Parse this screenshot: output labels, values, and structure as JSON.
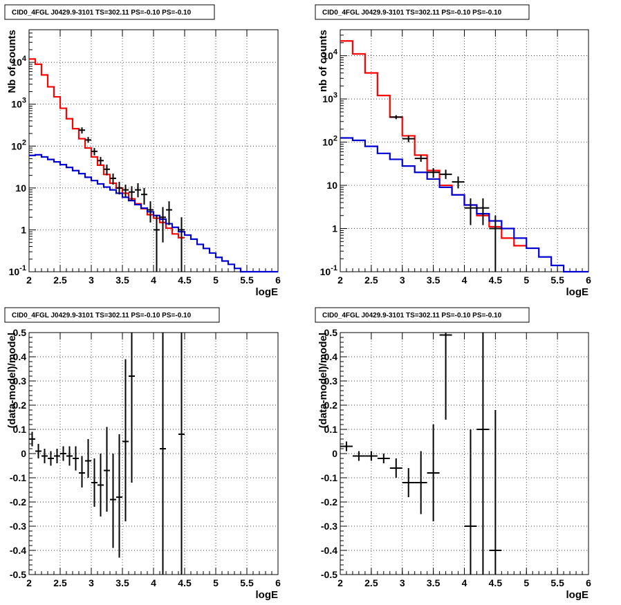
{
  "panel_titles": [
    "CID0_4FGL J0429.9-3101 TS=302.11 PS=-0.10 PS=-0.10",
    "CID0_4FGL J0429.9-3101 TS=302.11 PS=-0.10 PS=-0.10",
    "CID0_4FGL J0429.9-3101 TS=302.11 PS=-0.10 PS=-0.10",
    "CID0_4FGL J0429.9-3101 TS=302.11 PS=-0.10 PS=-0.10"
  ],
  "colors": {
    "total_model": "#ff0000",
    "background_model": "#0000d0",
    "data": "#000000",
    "grid": "#000000"
  },
  "chart_data": [
    {
      "type": "line",
      "title": "CID0_4FGL J0429.9-3101 TS=302.11 PS=-0.10 PS=-0.10",
      "xlabel": "logE",
      "ylabel": "Nb of counts",
      "log_y": true,
      "grid": true,
      "xlim": [
        2,
        6
      ],
      "ylim": [
        0.1,
        60000
      ],
      "xticks": [
        "2",
        "2.5",
        "3",
        "3.5",
        "4",
        "4.5",
        "5",
        "5.5",
        "6"
      ],
      "yticks": [
        {
          "v": 0.1,
          "label": "10^-1"
        },
        {
          "v": 1,
          "label": "1"
        },
        {
          "v": 10,
          "label": "10"
        },
        {
          "v": 100,
          "label": "10^2"
        },
        {
          "v": 1000,
          "label": "10^3"
        },
        {
          "v": 10000,
          "label": "10^4"
        }
      ],
      "series": [
        {
          "kind": "step",
          "edges": [
            2.0,
            2.1,
            2.2,
            2.3,
            2.4,
            2.5,
            2.6,
            2.7,
            2.8,
            2.9,
            3.0,
            3.1,
            3.2,
            3.3,
            3.4,
            3.5,
            3.6,
            3.7,
            3.8,
            3.9,
            4.0,
            4.1,
            4.2,
            4.3,
            4.4,
            4.5
          ],
          "values": [
            12000,
            9000,
            5000,
            2600,
            1500,
            800,
            450,
            260,
            150,
            90,
            55,
            35,
            21,
            13,
            10,
            7.5,
            5.5,
            4.2,
            3.2,
            2.3,
            1.9,
            1.5,
            1.1,
            0.8,
            0.65
          ]
        },
        {
          "kind": "step",
          "edges": [
            2.0,
            2.1,
            2.2,
            2.3,
            2.4,
            2.5,
            2.6,
            2.7,
            2.8,
            2.9,
            3.0,
            3.1,
            3.2,
            3.3,
            3.4,
            3.5,
            3.6,
            3.7,
            3.8,
            3.9,
            4.0,
            4.1,
            4.2,
            4.3,
            4.4,
            4.5,
            4.6,
            4.7,
            4.8,
            4.9,
            5.0,
            5.1,
            5.2,
            5.3,
            5.4,
            5.5,
            5.6,
            5.7,
            5.8,
            5.9,
            6.0
          ],
          "values": [
            60,
            62,
            55,
            48,
            42,
            36,
            31,
            26,
            22,
            18,
            15,
            12.5,
            10.5,
            9,
            7.5,
            6,
            5,
            4,
            3.3,
            2.7,
            2.2,
            1.8,
            1.4,
            1.15,
            0.9,
            0.75,
            0.6,
            0.45,
            0.36,
            0.28,
            0.22,
            0.18,
            0.15,
            0.12,
            0.1,
            0.1,
            0.1,
            0.1,
            0.1,
            0.1
          ]
        },
        {
          "kind": "points",
          "x": [
            2.85,
            2.95,
            3.05,
            3.15,
            3.25,
            3.35,
            3.45,
            3.55,
            3.65,
            3.75,
            3.85,
            3.95,
            4.05,
            4.15,
            4.25,
            4.45
          ],
          "y": [
            240,
            140,
            75,
            45,
            28,
            17,
            10,
            9,
            8,
            9,
            7,
            3,
            1,
            2,
            3,
            1
          ],
          "ylo": [
            200,
            120,
            60,
            35,
            20,
            12,
            7,
            6,
            5,
            6,
            4,
            1.5,
            0.1,
            0.5,
            1.3,
            0.1
          ],
          "yhi": [
            280,
            165,
            90,
            55,
            36,
            22,
            14,
            12,
            11,
            13,
            10,
            4.8,
            2.3,
            3.5,
            4.8,
            2.0
          ],
          "xerr": 0.05
        }
      ]
    },
    {
      "type": "line",
      "title": "CID0_4FGL J0429.9-3101 TS=302.11 PS=-0.10 PS=-0.10",
      "xlabel": "logE",
      "ylabel": "nb of counts",
      "log_y": true,
      "grid": true,
      "xlim": [
        2,
        6
      ],
      "ylim": [
        0.1,
        40000
      ],
      "xticks": [
        "2",
        "2.5",
        "3",
        "3.5",
        "4",
        "4.5",
        "5",
        "5.5",
        "6"
      ],
      "yticks": [
        {
          "v": 0.1,
          "label": "10^-1"
        },
        {
          "v": 1,
          "label": "1"
        },
        {
          "v": 10,
          "label": "10"
        },
        {
          "v": 100,
          "label": "10^2"
        },
        {
          "v": 1000,
          "label": "10^3"
        },
        {
          "v": 10000,
          "label": "10^4"
        }
      ],
      "series": [
        {
          "kind": "step",
          "edges": [
            2.0,
            2.2,
            2.4,
            2.6,
            2.8,
            3.0,
            3.2,
            3.4,
            3.6,
            3.8,
            4.0,
            4.2,
            4.4,
            4.6,
            4.8,
            5.0
          ],
          "values": [
            22000,
            11000,
            4000,
            1200,
            380,
            140,
            50,
            22,
            10,
            6,
            3.5,
            2.0,
            1.1,
            0.6,
            0.4
          ]
        },
        {
          "kind": "step",
          "edges": [
            2.0,
            2.2,
            2.4,
            2.6,
            2.8,
            3.0,
            3.2,
            3.4,
            3.6,
            3.8,
            4.0,
            4.2,
            4.4,
            4.6,
            4.8,
            5.0,
            5.2,
            5.4,
            5.6,
            5.8,
            6.0
          ],
          "values": [
            125,
            110,
            80,
            55,
            40,
            28,
            20,
            14,
            9,
            6,
            3.5,
            2.2,
            1.5,
            1.0,
            0.6,
            0.35,
            0.22,
            0.14,
            0.1,
            0.1
          ]
        },
        {
          "kind": "points",
          "x": [
            2.9,
            3.1,
            3.3,
            3.5,
            3.7,
            3.9,
            4.1,
            4.3,
            4.5
          ],
          "y": [
            380,
            120,
            42,
            20,
            18,
            12,
            3,
            3,
            1
          ],
          "ylo": [
            340,
            100,
            35,
            15,
            14,
            8.5,
            1.2,
            1.2,
            0.1
          ],
          "yhi": [
            420,
            140,
            50,
            25,
            23,
            16,
            5.0,
            5.0,
            2.0
          ],
          "xerr": 0.1
        }
      ]
    },
    {
      "type": "scatter",
      "title": "CID0_4FGL J0429.9-3101 TS=302.11 PS=-0.10 PS=-0.10",
      "xlabel": "logE",
      "ylabel": "(data-model)/model",
      "log_y": false,
      "grid": true,
      "xlim": [
        2,
        6
      ],
      "ylim": [
        -0.5,
        0.5
      ],
      "xticks": [
        "2",
        "2.5",
        "3",
        "3.5",
        "4",
        "4.5",
        "5",
        "5.5",
        "6"
      ],
      "yticks": [
        {
          "v": -0.5,
          "label": "-0.5"
        },
        {
          "v": -0.4,
          "label": "-0.4"
        },
        {
          "v": -0.3,
          "label": "-0.3"
        },
        {
          "v": -0.2,
          "label": "-0.2"
        },
        {
          "v": -0.1,
          "label": "-0.1"
        },
        {
          "v": 0,
          "label": "0"
        },
        {
          "v": 0.1,
          "label": "0.1"
        },
        {
          "v": 0.2,
          "label": "0.2"
        },
        {
          "v": 0.3,
          "label": "0.3"
        },
        {
          "v": 0.4,
          "label": "0.4"
        },
        {
          "v": 0.5,
          "label": "0.5"
        }
      ],
      "series": [
        {
          "kind": "points",
          "x": [
            2.05,
            2.15,
            2.25,
            2.35,
            2.45,
            2.55,
            2.65,
            2.75,
            2.85,
            2.95,
            3.05,
            3.15,
            3.25,
            3.35,
            3.45,
            3.55,
            3.65,
            4.15,
            4.45
          ],
          "y": [
            0.06,
            0.01,
            -0.01,
            -0.02,
            -0.01,
            0.0,
            -0.01,
            -0.02,
            -0.08,
            -0.03,
            -0.12,
            -0.13,
            -0.07,
            -0.19,
            -0.18,
            0.05,
            0.32,
            0.02,
            0.08
          ],
          "ylo": [
            0.03,
            -0.02,
            -0.04,
            -0.05,
            -0.04,
            -0.03,
            -0.05,
            -0.07,
            -0.14,
            -0.1,
            -0.22,
            -0.26,
            -0.24,
            -0.39,
            -0.43,
            -0.28,
            -0.12,
            -0.5,
            -0.5
          ],
          "yhi": [
            0.09,
            0.04,
            0.02,
            0.01,
            0.02,
            0.03,
            0.03,
            0.03,
            -0.01,
            0.06,
            -0.02,
            0.0,
            0.11,
            0.0,
            0.08,
            0.39,
            0.5,
            0.5,
            0.5
          ],
          "xerr": 0.05
        }
      ]
    },
    {
      "type": "scatter",
      "title": "CID0_4FGL J0429.9-3101 TS=302.11 PS=-0.10 PS=-0.10",
      "xlabel": "logE",
      "ylabel": "(data-model)/model",
      "log_y": false,
      "grid": true,
      "xlim": [
        2,
        6
      ],
      "ylim": [
        -0.5,
        0.5
      ],
      "xticks": [
        "2",
        "2.5",
        "3",
        "3.5",
        "4",
        "4.5",
        "5",
        "5.5",
        "6"
      ],
      "yticks": [
        {
          "v": -0.5,
          "label": "-0.5"
        },
        {
          "v": -0.4,
          "label": "-0.4"
        },
        {
          "v": -0.3,
          "label": "-0.3"
        },
        {
          "v": -0.2,
          "label": "-0.2"
        },
        {
          "v": -0.1,
          "label": "-0.1"
        },
        {
          "v": 0,
          "label": "0"
        },
        {
          "v": 0.1,
          "label": "0.1"
        },
        {
          "v": 0.2,
          "label": "0.2"
        },
        {
          "v": 0.3,
          "label": "0.3"
        },
        {
          "v": 0.4,
          "label": "0.4"
        },
        {
          "v": 0.5,
          "label": "0.5"
        }
      ],
      "series": [
        {
          "kind": "points",
          "x": [
            2.1,
            2.3,
            2.5,
            2.7,
            2.9,
            3.1,
            3.3,
            3.5,
            3.7,
            4.1,
            4.3,
            4.5
          ],
          "y": [
            0.03,
            -0.01,
            -0.01,
            -0.02,
            -0.06,
            -0.12,
            -0.12,
            -0.08,
            0.49,
            -0.3,
            0.1,
            -0.4
          ],
          "ylo": [
            0.01,
            -0.03,
            -0.03,
            -0.04,
            -0.1,
            -0.18,
            -0.25,
            -0.28,
            0.14,
            -0.5,
            -0.5,
            -0.5
          ],
          "yhi": [
            0.05,
            0.01,
            0.01,
            0.0,
            -0.02,
            -0.06,
            0.01,
            0.12,
            0.5,
            0.1,
            0.5,
            0.18
          ],
          "xerr": 0.1
        }
      ]
    }
  ]
}
